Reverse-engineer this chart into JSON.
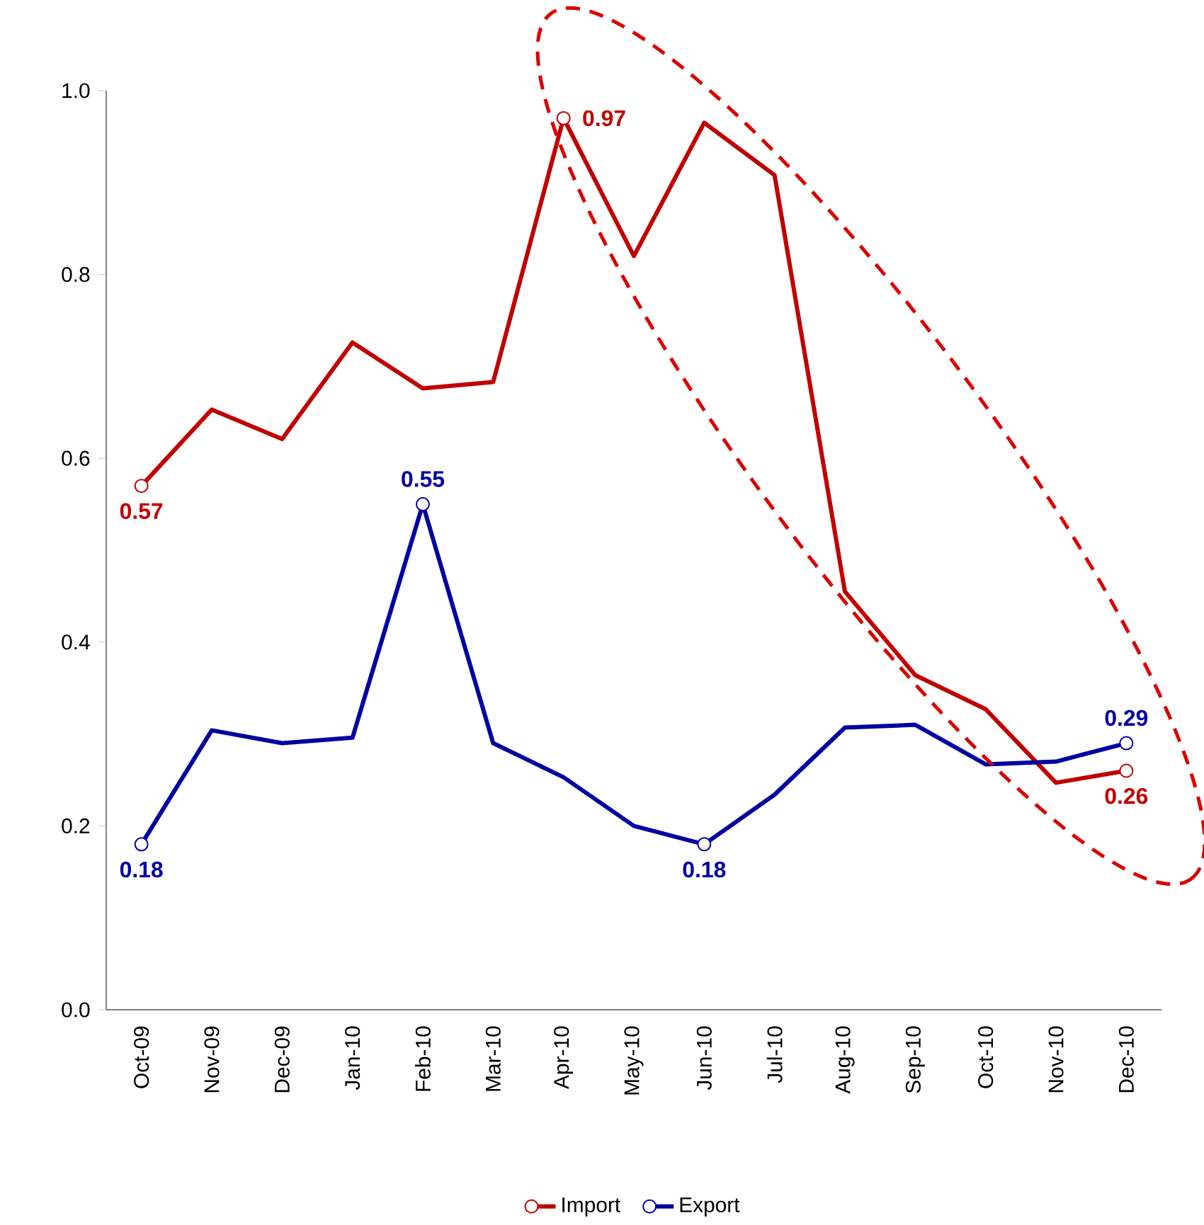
{
  "chart_data": {
    "type": "line",
    "categories": [
      "Oct-09",
      "Nov-09",
      "Dec-09",
      "Jan-10",
      "Feb-10",
      "Mar-10",
      "Apr-10",
      "May-10",
      "Jun-10",
      "Jul-10",
      "Aug-10",
      "Sep-10",
      "Oct-10",
      "Nov-10",
      "Dec-10"
    ],
    "series": [
      {
        "name": "Import",
        "color": "#c00000",
        "values": [
          0.57,
          0.653,
          0.621,
          0.726,
          0.676,
          0.683,
          0.97,
          0.82,
          0.965,
          0.908,
          0.455,
          0.364,
          0.327,
          0.247,
          0.26
        ],
        "value_labels": [
          "0.57",
          null,
          null,
          null,
          null,
          null,
          "0.97",
          null,
          null,
          null,
          null,
          null,
          null,
          null,
          "0.26"
        ]
      },
      {
        "name": "Export",
        "color": "#0000a0",
        "values": [
          0.18,
          0.304,
          0.29,
          0.296,
          0.55,
          0.29,
          0.253,
          0.2,
          0.18,
          0.234,
          0.307,
          0.31,
          0.267,
          0.27,
          0.29
        ],
        "value_labels": [
          "0.18",
          null,
          null,
          null,
          "0.55",
          null,
          null,
          null,
          "0.18",
          null,
          null,
          null,
          null,
          null,
          "0.29"
        ]
      }
    ],
    "ylim": [
      0,
      1
    ],
    "yticks": [
      {
        "value": 0,
        "label": "0.0"
      },
      {
        "value": 0.2,
        "label": "0.2"
      },
      {
        "value": 0.4,
        "label": "0.4"
      },
      {
        "value": 0.6,
        "label": "0.6"
      },
      {
        "value": 0.8,
        "label": "0.8"
      },
      {
        "value": 1,
        "label": "1.0"
      }
    ],
    "grid": false,
    "legend": "bottom",
    "line_style": "solid"
  }
}
